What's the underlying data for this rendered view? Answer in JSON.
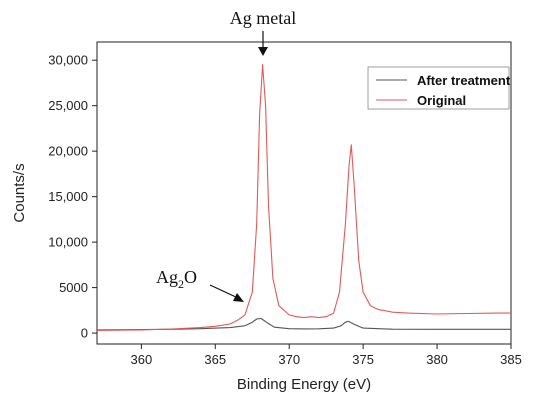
{
  "chart_data": {
    "type": "line",
    "title": "",
    "xlabel": "Binding Energy (eV)",
    "ylabel": "Counts/s",
    "xlim": [
      357,
      385
    ],
    "ylim": [
      -1200,
      32000
    ],
    "x_ticks": [
      360,
      365,
      370,
      375,
      380,
      385
    ],
    "x_tick_labels": [
      "360",
      "365",
      "370",
      "375",
      "380",
      "385"
    ],
    "y_ticks": [
      0,
      5000,
      10000,
      15000,
      20000,
      25000,
      30000
    ],
    "y_tick_labels": [
      "0",
      "5000",
      "10,000",
      "15,000",
      "20,000",
      "25,000",
      "30,000"
    ],
    "legend_position": "top-right",
    "grid": false,
    "series": [
      {
        "name": "After treatment",
        "color": "#555555",
        "points": [
          [
            357,
            350
          ],
          [
            360,
            380
          ],
          [
            362,
            420
          ],
          [
            364,
            480
          ],
          [
            366,
            600
          ],
          [
            367,
            800
          ],
          [
            367.5,
            1200
          ],
          [
            367.8,
            1550
          ],
          [
            368.1,
            1600
          ],
          [
            368.5,
            1150
          ],
          [
            369,
            650
          ],
          [
            370,
            480
          ],
          [
            371,
            460
          ],
          [
            372,
            470
          ],
          [
            373,
            550
          ],
          [
            373.5,
            800
          ],
          [
            373.8,
            1200
          ],
          [
            374,
            1300
          ],
          [
            374.4,
            950
          ],
          [
            375,
            550
          ],
          [
            377,
            430
          ],
          [
            380,
            420
          ],
          [
            383,
            420
          ],
          [
            385,
            420
          ]
        ]
      },
      {
        "name": "Original",
        "color": "#e05a5a",
        "points": [
          [
            357,
            300
          ],
          [
            360,
            350
          ],
          [
            362,
            450
          ],
          [
            364,
            600
          ],
          [
            365,
            750
          ],
          [
            366,
            1000
          ],
          [
            366.5,
            1400
          ],
          [
            367,
            2000
          ],
          [
            367.5,
            4500
          ],
          [
            367.8,
            12000
          ],
          [
            368.0,
            24000
          ],
          [
            368.2,
            29500
          ],
          [
            368.4,
            25000
          ],
          [
            368.6,
            14000
          ],
          [
            368.9,
            6000
          ],
          [
            369.3,
            3000
          ],
          [
            370,
            2000
          ],
          [
            370.5,
            1800
          ],
          [
            371,
            1700
          ],
          [
            371.5,
            1800
          ],
          [
            372,
            1700
          ],
          [
            372.5,
            1800
          ],
          [
            373,
            2200
          ],
          [
            373.4,
            4500
          ],
          [
            373.8,
            12000
          ],
          [
            374.05,
            18500
          ],
          [
            374.2,
            20700
          ],
          [
            374.4,
            16000
          ],
          [
            374.7,
            8000
          ],
          [
            375,
            4500
          ],
          [
            375.5,
            3000
          ],
          [
            376,
            2600
          ],
          [
            377,
            2300
          ],
          [
            378,
            2200
          ],
          [
            380,
            2100
          ],
          [
            382,
            2150
          ],
          [
            384,
            2200
          ],
          [
            385,
            2200
          ]
        ]
      }
    ],
    "annotations": [
      {
        "label": "Ag metal",
        "x": 368.2,
        "y": 29500
      },
      {
        "label": "Ag",
        "subscript": "2",
        "suffix": "O",
        "x": 367.2,
        "y": 1700
      }
    ]
  }
}
